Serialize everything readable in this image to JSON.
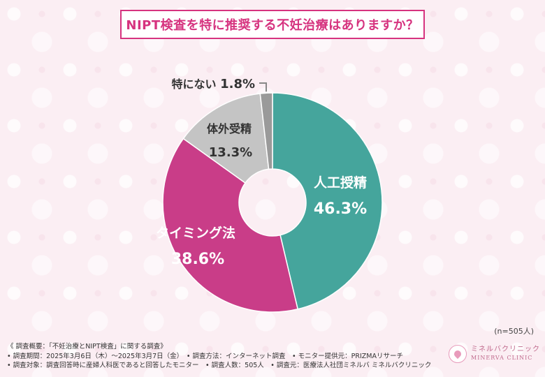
{
  "title": "NIPT検査を特に推奨する不妊治療はありますか？",
  "chart_data": {
    "type": "pie",
    "title": "NIPT検査を特に推奨する不妊治療はありますか？",
    "n_label": "(n=505人)",
    "slices": [
      {
        "label": "人工授精",
        "value": 46.3,
        "value_label": "46.3%",
        "color": "#45a59c",
        "text_color": "#ffffff"
      },
      {
        "label": "タイミング法",
        "value": 38.6,
        "value_label": "38.6%",
        "color": "#c93d88",
        "text_color": "#ffffff"
      },
      {
        "label": "体外受精",
        "value": 13.3,
        "value_label": "13.3%",
        "color": "#c4c4c4",
        "text_color": "#333333"
      },
      {
        "label": "特にない",
        "value": 1.8,
        "value_label": "1.8%",
        "color": "#9a9a9a",
        "text_color": "#333333"
      }
    ]
  },
  "footer": {
    "line1": "《 調査概要：「不妊治療とNIPT検査」に関する調査》",
    "line2": "• 調査期間：2025年3月6日（木）～2025年3月7日（金）　• 調査方法：インターネット調査　• モニター提供元：PRIZMAリサーチ",
    "line3": "• 調査対象：調査回答時に産婦人科医であると回答したモニター　• 調査人数：505人　• 調査元：医療法人社団ミネルバ ミネルバクリニック"
  },
  "logo": {
    "jp": "ミネルバクリニック",
    "en": "MINERVA CLINIC"
  }
}
